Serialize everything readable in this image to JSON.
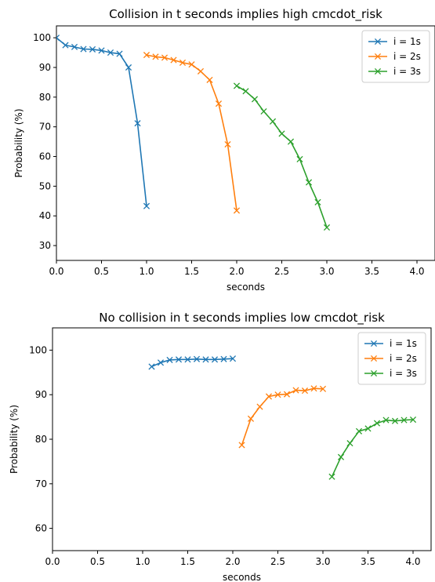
{
  "chart_data": [
    {
      "type": "line",
      "title": "Collision in t seconds implies high cmcdot_risk",
      "xlabel": "seconds",
      "ylabel": "Probability (%)",
      "xlim": [
        0.0,
        4.2
      ],
      "ylim": [
        25,
        104
      ],
      "xticks": [
        "0.0",
        "0.5",
        "1.0",
        "1.5",
        "2.0",
        "2.5",
        "3.0",
        "3.5",
        "4.0"
      ],
      "yticks": [
        "30",
        "40",
        "50",
        "60",
        "70",
        "80",
        "90",
        "100"
      ],
      "legend_position": "top-right",
      "series": [
        {
          "name": "i = 1s",
          "color": "#1f77b4",
          "x": [
            0.0,
            0.1,
            0.2,
            0.3,
            0.4,
            0.5,
            0.6,
            0.7,
            0.8,
            0.9,
            1.0
          ],
          "y": [
            100,
            97.5,
            96.9,
            96.2,
            96.1,
            95.7,
            95.0,
            94.6,
            90.0,
            71.2,
            43.3
          ]
        },
        {
          "name": "i = 2s",
          "color": "#ff7f0e",
          "x": [
            1.0,
            1.1,
            1.2,
            1.3,
            1.4,
            1.5,
            1.6,
            1.7,
            1.8,
            1.9,
            2.0
          ],
          "y": [
            94.2,
            93.6,
            93.3,
            92.5,
            91.6,
            91.0,
            88.7,
            85.8,
            77.8,
            64.1,
            41.8
          ]
        },
        {
          "name": "i = 3s",
          "color": "#2ca02c",
          "x": [
            2.0,
            2.1,
            2.2,
            2.3,
            2.4,
            2.5,
            2.6,
            2.7,
            2.8,
            2.9,
            3.0
          ],
          "y": [
            83.8,
            82.0,
            79.3,
            75.2,
            71.8,
            67.7,
            65.0,
            59.1,
            51.3,
            44.6,
            36.1
          ]
        }
      ]
    },
    {
      "type": "line",
      "title": "No collision in t seconds implies low cmcdot_risk",
      "xlabel": "seconds",
      "ylabel": "Probability (%)",
      "xlim": [
        0.0,
        4.2
      ],
      "ylim": [
        55,
        105
      ],
      "xticks": [
        "0.0",
        "0.5",
        "1.0",
        "1.5",
        "2.0",
        "2.5",
        "3.0",
        "3.5",
        "4.0"
      ],
      "yticks": [
        "60",
        "70",
        "80",
        "90",
        "100"
      ],
      "legend_position": "top-right",
      "series": [
        {
          "name": "i = 1s",
          "color": "#1f77b4",
          "x": [
            1.1,
            1.2,
            1.3,
            1.4,
            1.5,
            1.6,
            1.7,
            1.8,
            1.9,
            2.0
          ],
          "y": [
            96.3,
            97.2,
            97.8,
            97.9,
            97.9,
            98.0,
            97.9,
            97.9,
            98.0,
            98.1
          ]
        },
        {
          "name": "i = 2s",
          "color": "#ff7f0e",
          "x": [
            2.1,
            2.2,
            2.3,
            2.4,
            2.5,
            2.6,
            2.7,
            2.8,
            2.9,
            3.0
          ],
          "y": [
            78.7,
            84.6,
            87.3,
            89.6,
            90.0,
            90.1,
            91.0,
            90.9,
            91.4,
            91.3
          ]
        },
        {
          "name": "i = 3s",
          "color": "#2ca02c",
          "x": [
            3.1,
            3.2,
            3.3,
            3.4,
            3.5,
            3.6,
            3.7,
            3.8,
            3.9,
            4.0
          ],
          "y": [
            71.6,
            76.0,
            79.1,
            81.8,
            82.4,
            83.6,
            84.3,
            84.1,
            84.3,
            84.4
          ]
        }
      ]
    }
  ]
}
